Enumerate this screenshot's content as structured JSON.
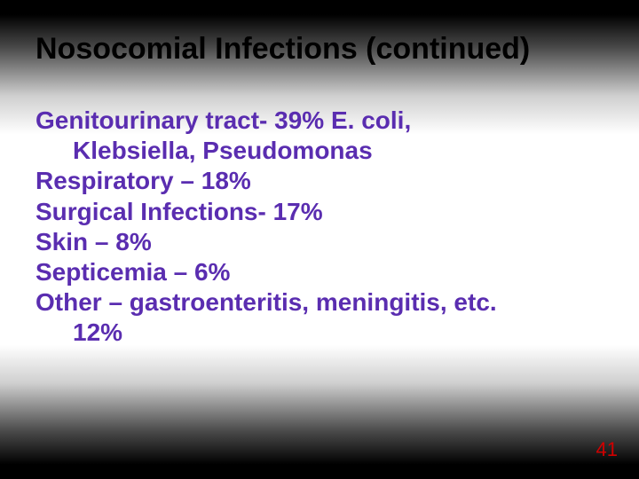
{
  "title": "Nosocomial Infections (continued)",
  "text_color": "#5a2db0",
  "items": [
    {
      "line1": "Genitourinary tract- 39% E. coli,",
      "line2": "Klebsiella, Pseudomonas"
    },
    {
      "line1": "Respiratory – 18%"
    },
    {
      "line1": "Surgical Infections- 17%"
    },
    {
      "line1": "Skin – 8%"
    },
    {
      "line1": "Septicemia – 6%"
    },
    {
      "line1": "Other – gastroenteritis, meningitis, etc.",
      "line2": "12%"
    }
  ],
  "page_number": "41",
  "page_number_color": "#d00000"
}
